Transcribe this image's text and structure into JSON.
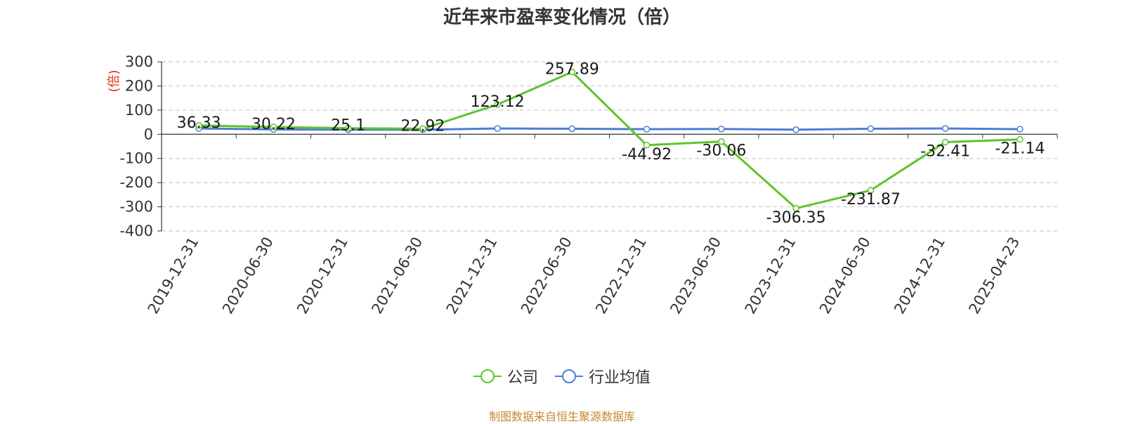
{
  "title": "近年来市盈率变化情况（倍）",
  "source": "制图数据来自恒生聚源数据库",
  "colors": {
    "company": "#5ec42a",
    "industry": "#4a7fd6",
    "unit_label": "#e0301e"
  },
  "chart_data": {
    "type": "line",
    "title": "近年来市盈率变化情况（倍）",
    "ylabel": "(倍)",
    "ylim": [
      -400,
      300
    ],
    "yticks": [
      300,
      200,
      100,
      0,
      -100,
      -200,
      -300,
      -400
    ],
    "grid": true,
    "legend_position": "bottom-center",
    "categories": [
      "2019-12-31",
      "2020-06-30",
      "2020-12-31",
      "2021-06-30",
      "2021-12-31",
      "2022-06-30",
      "2022-12-31",
      "2023-06-30",
      "2023-12-31",
      "2024-06-30",
      "2024-12-31",
      "2025-04-23"
    ],
    "series": [
      {
        "name": "公司",
        "color": "#5ec42a",
        "show_labels": true,
        "values": [
          36.33,
          30.22,
          25.1,
          22.92,
          123.12,
          257.89,
          -44.92,
          -30.06,
          -306.35,
          -231.87,
          -32.41,
          -21.14
        ]
      },
      {
        "name": "行业均值",
        "color": "#4a7fd6",
        "show_labels": false,
        "values": [
          24,
          20,
          19,
          19,
          24,
          23,
          21,
          22,
          19,
          23,
          24,
          21
        ]
      }
    ]
  }
}
